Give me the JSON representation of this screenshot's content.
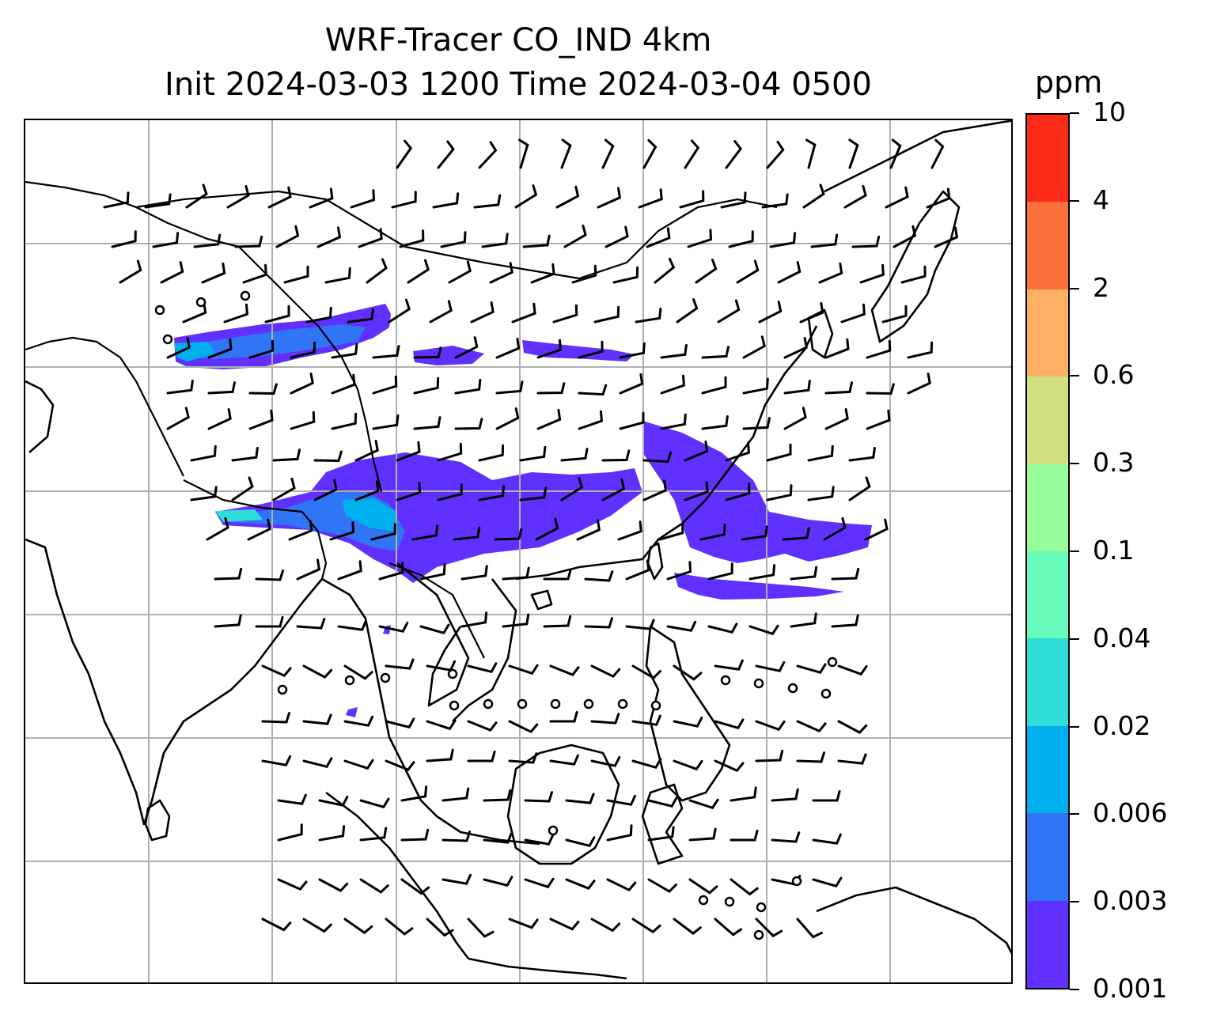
{
  "title": {
    "line1": "WRF-Tracer CO_IND 4km",
    "line2": "Init 2024-03-03 1200 Time 2024-03-04 0500"
  },
  "colorbar": {
    "units": "ppm",
    "levels": [
      "0.001",
      "0.003",
      "0.006",
      "0.02",
      "0.04",
      "0.1",
      "0.3",
      "0.6",
      "2",
      "4",
      "10"
    ],
    "colors": [
      "#6030ff",
      "#3075f5",
      "#00b0ee",
      "#30ddd8",
      "#68fcbc",
      "#98fc9c",
      "#d0e080",
      "#fcb064",
      "#fc703a",
      "#fc2a18"
    ]
  },
  "map": {
    "gridlines": true,
    "coastlines": true,
    "country_borders": true,
    "wind_barbs": true,
    "tracer_colors": {
      "low": "#6030ff",
      "mid": "#3075f5",
      "high": "#00b0ee",
      "peak": "#30ddd8"
    }
  }
}
